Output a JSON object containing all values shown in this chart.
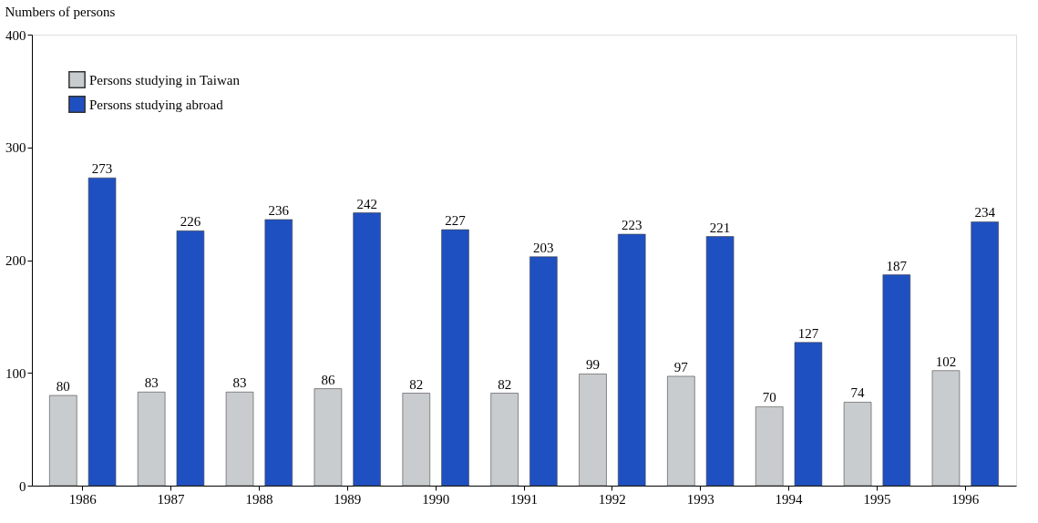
{
  "chart_data": {
    "type": "bar",
    "ylabel": "Numbers of persons",
    "categories": [
      "1986",
      "1987",
      "1988",
      "1989",
      "1990",
      "1991",
      "1992",
      "1993",
      "1994",
      "1995",
      "1996"
    ],
    "series": [
      {
        "name": "Persons studying in Taiwan",
        "color": "#c9cccf",
        "values": [
          80,
          83,
          83,
          86,
          82,
          82,
          99,
          97,
          70,
          74,
          102
        ]
      },
      {
        "name": "Persons studying abroad",
        "color": "#1f50c2",
        "values": [
          273,
          226,
          236,
          242,
          227,
          203,
          223,
          221,
          127,
          187,
          234
        ]
      }
    ],
    "ylim": [
      0,
      400
    ],
    "yticks": [
      0,
      100,
      200,
      300,
      400
    ],
    "grid": false,
    "legend": "top left",
    "data_labels": true
  }
}
